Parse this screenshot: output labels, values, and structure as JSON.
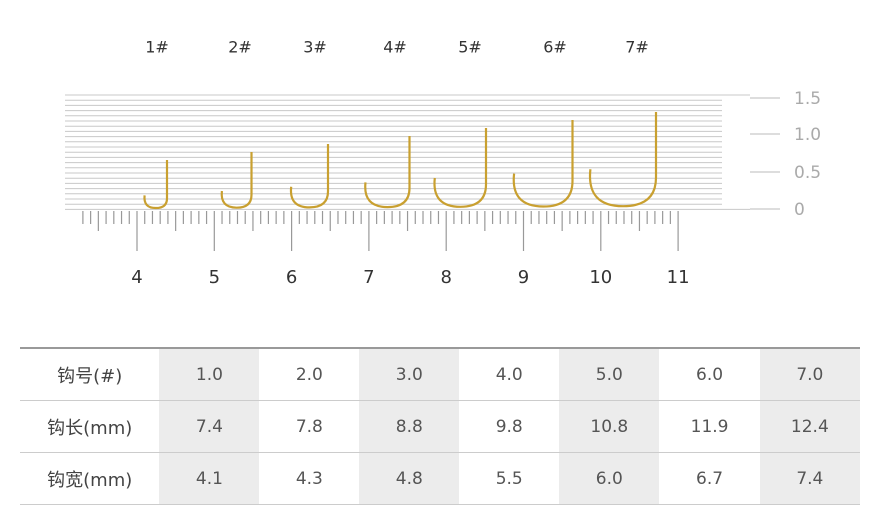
{
  "hook_labels": [
    "1#",
    "2#",
    "3#",
    "4#",
    "5#",
    "6#",
    "7#"
  ],
  "ruler_labels": [
    "4",
    "5",
    "6",
    "7",
    "8",
    "9",
    "10",
    "11"
  ],
  "scale_labels": [
    "1.5",
    "1.0",
    "0.5",
    "0"
  ],
  "table": {
    "rows": [
      [
        "钩号(#)",
        "1.0",
        "2.0",
        "3.0",
        "4.0",
        "5.0",
        "6.0",
        "7.0"
      ],
      [
        "钩长(mm)",
        "7.4",
        "7.8",
        "8.8",
        "9.8",
        "10.8",
        "11.9",
        "12.4"
      ],
      [
        "钩宽(mm)",
        "4.1",
        "4.3",
        "4.8",
        "5.5",
        "6.0",
        "6.7",
        "7.4"
      ]
    ]
  }
}
